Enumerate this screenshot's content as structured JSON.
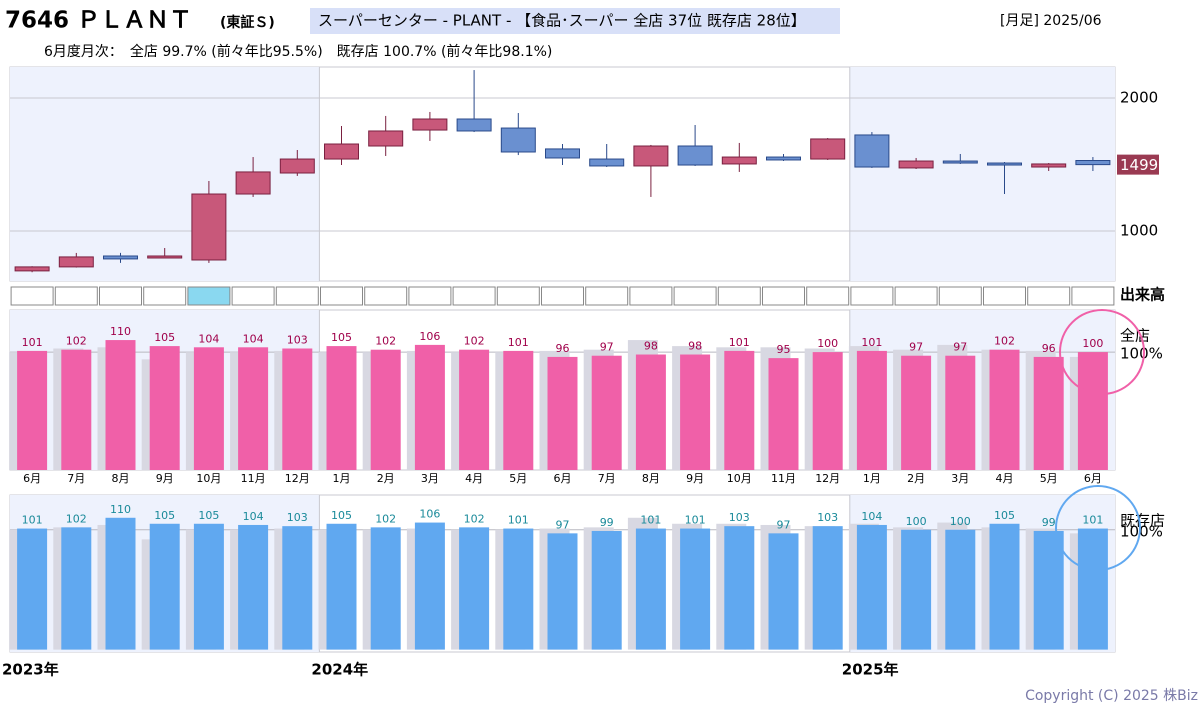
{
  "header": {
    "code_name": "7646 ＰＬＡＮＴ",
    "market": "(東証Ｓ)",
    "sector": "スーパーセンター - PLANT - 【食品･スーパー 全店 37位 既存店 28位】",
    "period": "[月足] 2025/06",
    "monthly": "6月度月次：　全店 99.7% (前々年比95.5%)　既存店 100.7% (前々年比98.1%)",
    "volume_label": "出来高"
  },
  "footer": {
    "years": [
      "2023年",
      "2024年",
      "2025年"
    ],
    "copyright": "Copyright (C) 2025 株Biz"
  },
  "chart_data": [
    {
      "type": "candlestick",
      "ylim": [
        624,
        2233
      ],
      "yticks": [
        1000,
        2000
      ],
      "grid": true,
      "up_color": "#c8587a",
      "down_color": "#6a90d0",
      "open": [
        700,
        730,
        812,
        797,
        782,
        1278,
        1436,
        1541,
        1639,
        1759,
        1842,
        1774,
        1617,
        1541,
        1489,
        1639,
        1504,
        1556,
        1541,
        1722,
        1474,
        1526,
        1511,
        1481,
        1530
      ],
      "high": [
        735,
        835,
        835,
        872,
        1376,
        1556,
        1609,
        1789,
        1865,
        1895,
        2210,
        1887,
        1654,
        1654,
        1647,
        1797,
        1662,
        1579,
        1699,
        1744,
        1549,
        1579,
        1519,
        1511,
        1556
      ],
      "low": [
        690,
        725,
        760,
        795,
        760,
        1256,
        1414,
        1496,
        1564,
        1677,
        1744,
        1571,
        1496,
        1481,
        1256,
        1489,
        1444,
        1526,
        1534,
        1474,
        1466,
        1504,
        1278,
        1451,
        1451
      ],
      "close": [
        730,
        805,
        790,
        812,
        1278,
        1444,
        1541,
        1654,
        1752,
        1842,
        1752,
        1594,
        1549,
        1489,
        1639,
        1496,
        1556,
        1534,
        1692,
        1481,
        1526,
        1511,
        1496,
        1504,
        1499
      ]
    },
    {
      "type": "bar",
      "title": "全店",
      "ylim": [
        2,
        135
      ],
      "yticks": [
        {
          "value": 100,
          "label": "100%"
        }
      ],
      "label_color": "#a0004a",
      "categories": [
        "6月",
        "7月",
        "8月",
        "9月",
        "10月",
        "11月",
        "12月",
        "1月",
        "2月",
        "3月",
        "4月",
        "5月",
        "6月",
        "7月",
        "8月",
        "9月",
        "10月",
        "11月",
        "12月",
        "1月",
        "2月",
        "3月",
        "4月",
        "5月",
        "6月"
      ],
      "series": [
        {
          "color": "#d8d8e2",
          "values": [
            100,
            103,
            104,
            94,
            100,
            100,
            101,
            100,
            100,
            101,
            100,
            100,
            101,
            102,
            110,
            105,
            104,
            104,
            103,
            105,
            102,
            106,
            102,
            101,
            96
          ]
        },
        {
          "color": "#f060a8",
          "values": [
            101,
            102,
            110,
            105,
            104,
            104,
            103,
            105,
            102,
            106,
            102,
            101,
            96,
            97,
            98,
            98,
            101,
            95,
            100,
            101,
            97,
            97,
            102,
            96,
            100
          ]
        }
      ]
    },
    {
      "type": "bar",
      "title": "既存店",
      "ylim": [
        -2,
        129
      ],
      "yticks": [
        {
          "value": 100,
          "label": "100%"
        }
      ],
      "label_color": "#1a8a9a",
      "series": [
        {
          "color": "#d8d8e2",
          "values": [
            100,
            102,
            104,
            92,
            100,
            100,
            101,
            100,
            100,
            101,
            100,
            100,
            101,
            102,
            110,
            105,
            105,
            104,
            103,
            105,
            102,
            106,
            102,
            101,
            97
          ]
        },
        {
          "color": "#60a8f0",
          "values": [
            101,
            102,
            110,
            105,
            105,
            104,
            103,
            105,
            102,
            106,
            102,
            101,
            97,
            99,
            101,
            101,
            103,
            97,
            103,
            104,
            100,
            100,
            105,
            99,
            101
          ]
        }
      ]
    }
  ]
}
